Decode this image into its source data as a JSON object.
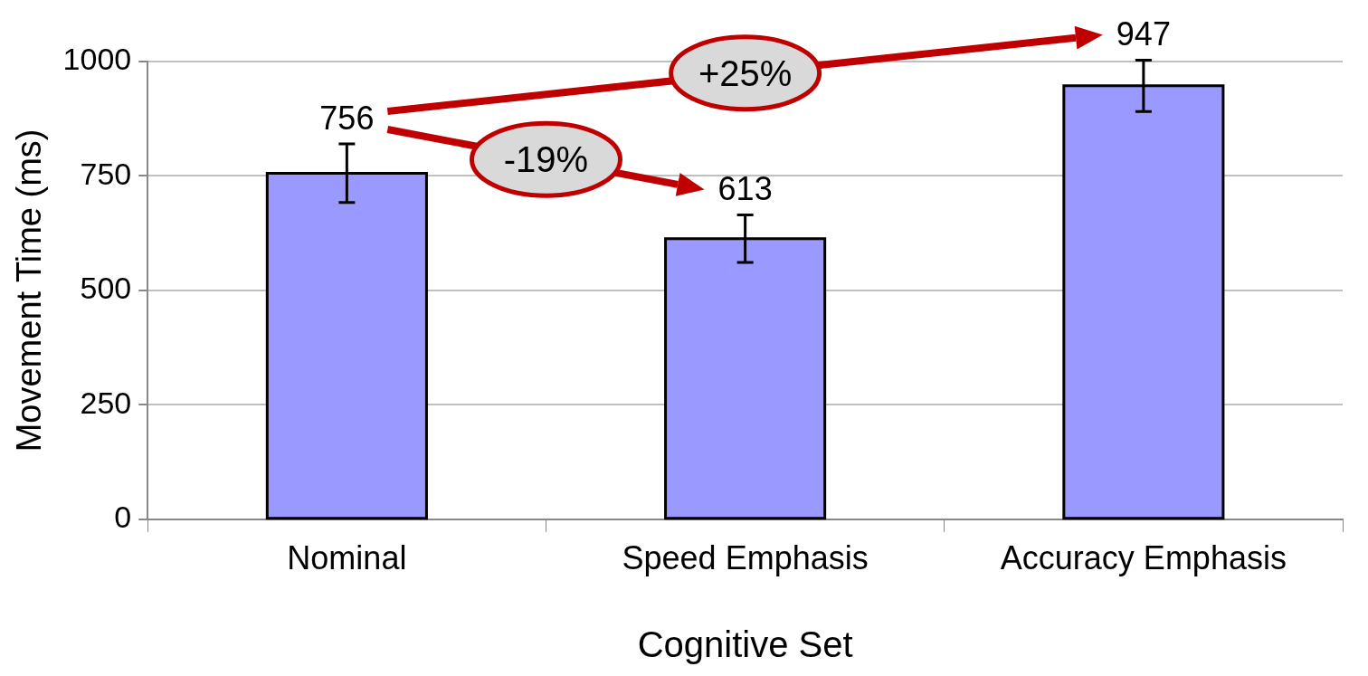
{
  "chart_data": {
    "type": "bar",
    "xlabel": "Cognitive Set",
    "ylabel": "Movement Time (ms)",
    "categories": [
      "Nominal",
      "Speed Emphasis",
      "Accuracy Emphasis"
    ],
    "values": [
      756,
      613,
      947
    ],
    "color": "#9999ff",
    "errors": [
      64,
      52,
      56
    ],
    "data_labels": true,
    "ylim": [
      0,
      1000
    ],
    "yticks": [
      0,
      250,
      500,
      750,
      1000
    ],
    "grid": "y",
    "legend": false,
    "annotations": [
      "+25%",
      "-19%"
    ]
  }
}
